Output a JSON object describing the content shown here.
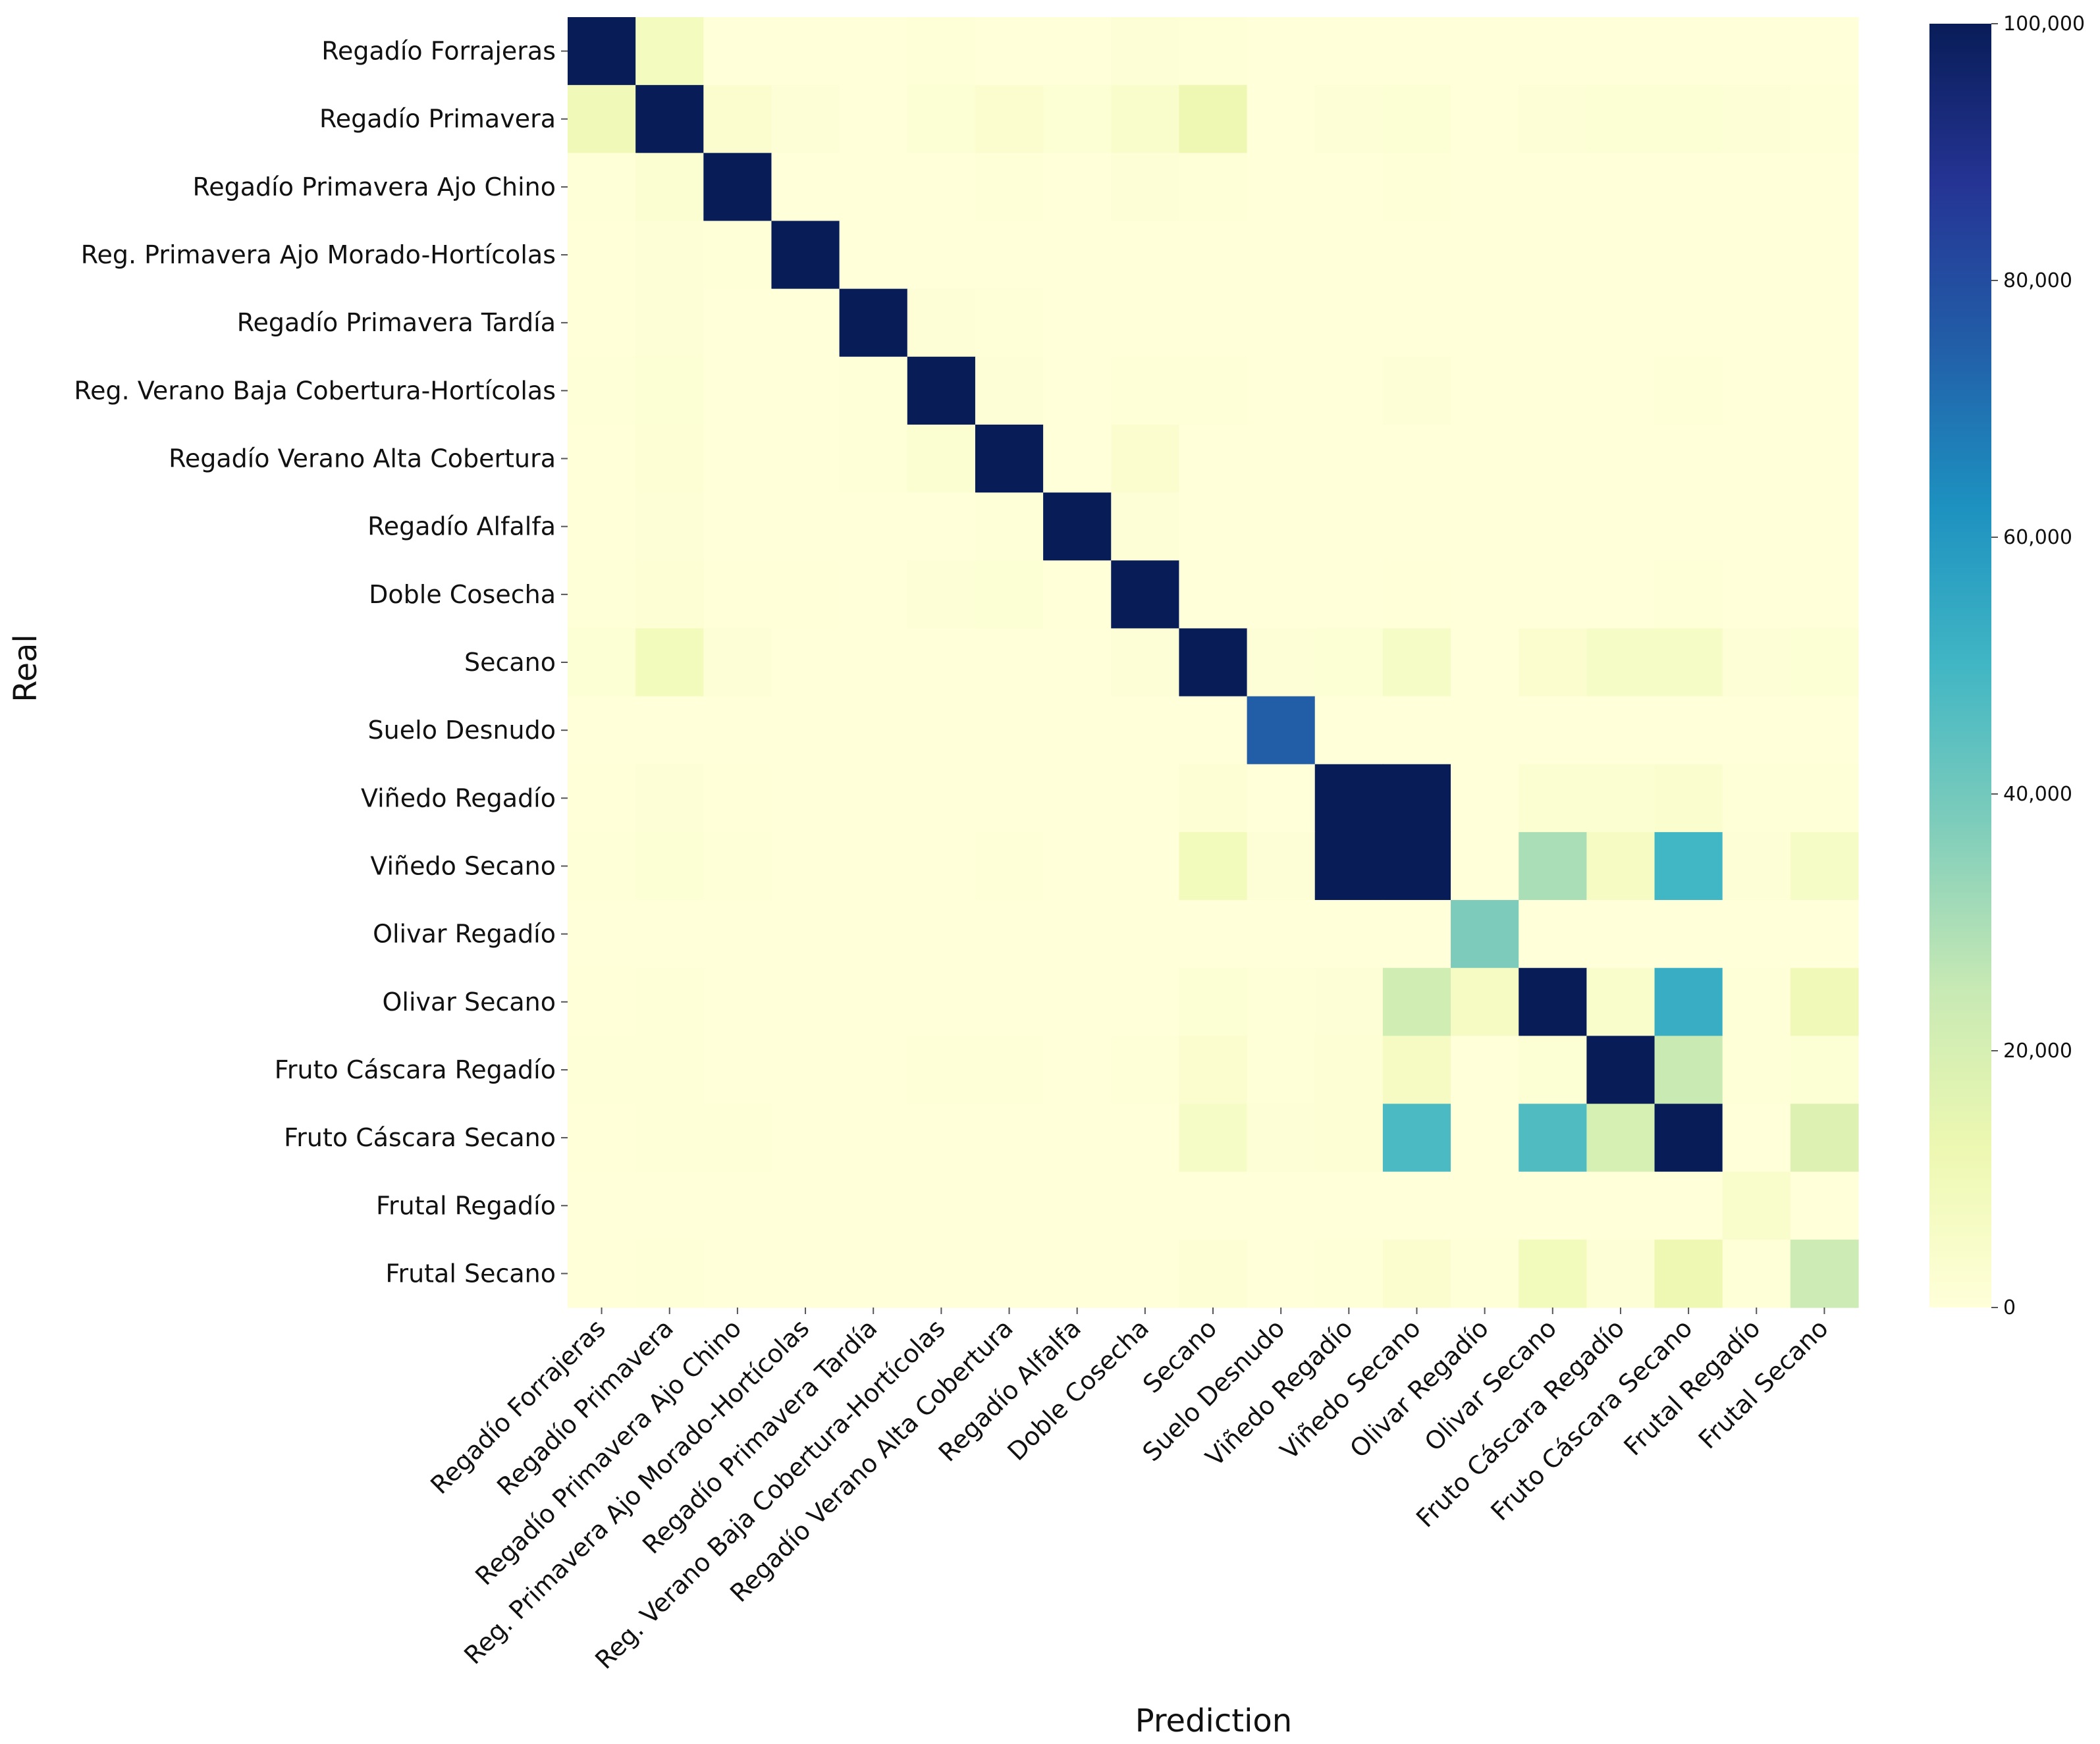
{
  "chart_data": {
    "type": "heatmap",
    "title": "",
    "xlabel": "Prediction",
    "ylabel": "Real",
    "categories": [
      "Regadío Forrajeras",
      "Regadío Primavera",
      "Regadío Primavera Ajo Chino",
      "Reg. Primavera Ajo Morado-Hortícolas",
      "Regadío Primavera Tardía",
      "Reg. Verano Baja Cobertura-Hortícolas",
      "Regadío Verano Alta Cobertura",
      "Regadío Alfalfa",
      "Doble Cosecha",
      "Secano",
      "Suelo Desnudo",
      "Viñedo Regadío",
      "Viñedo Secano",
      "Olivar Regadío",
      "Olivar Secano",
      "Fruto Cáscara Regadío",
      "Fruto Cáscara Secano",
      "Frutal Regadío",
      "Frutal Secano"
    ],
    "y_categories": [
      "Regadío Forrajeras",
      "Regadío Primavera",
      "Regadío Primavera Ajo Chino",
      "Reg. Primavera Ajo Morado-Hortícolas",
      "Regadío Primavera Tardía",
      "Reg. Verano Baja Cobertura-Hortícolas",
      "Regadío Verano Alta Cobertura",
      "Regadío Alfalfa",
      "Doble Cosecha",
      "Secano",
      "Suelo Desnudo",
      "Viñedo Regadío",
      "Viñedo Secano",
      "Olivar Regadío",
      "Olivar Secano",
      "Fruto Cáscara Regadío",
      "Fruto Cáscara Secano",
      "Frutal Regadío",
      "Frutal Secano"
    ],
    "values": [
      [
        100000,
        8000,
        0,
        0,
        0,
        500,
        0,
        0,
        1000,
        500,
        0,
        0,
        0,
        0,
        0,
        0,
        0,
        0,
        0
      ],
      [
        10000,
        100000,
        3000,
        1000,
        0,
        2000,
        3000,
        2000,
        4000,
        12000,
        0,
        1000,
        2000,
        0,
        1000,
        2000,
        2000,
        1000,
        500
      ],
      [
        500,
        2500,
        100000,
        0,
        0,
        0,
        500,
        0,
        1000,
        500,
        0,
        0,
        500,
        0,
        0,
        0,
        0,
        0,
        0
      ],
      [
        300,
        1000,
        500,
        100000,
        0,
        0,
        0,
        0,
        0,
        0,
        0,
        0,
        0,
        0,
        0,
        0,
        0,
        0,
        0
      ],
      [
        300,
        1200,
        0,
        0,
        100000,
        1000,
        500,
        0,
        0,
        0,
        0,
        0,
        0,
        0,
        0,
        0,
        0,
        0,
        0
      ],
      [
        500,
        2000,
        0,
        0,
        500,
        100000,
        1200,
        0,
        500,
        500,
        0,
        0,
        1000,
        0,
        0,
        0,
        500,
        0,
        0
      ],
      [
        300,
        1500,
        0,
        0,
        500,
        2500,
        100000,
        0,
        3000,
        0,
        0,
        0,
        0,
        0,
        0,
        0,
        0,
        0,
        0
      ],
      [
        200,
        1000,
        0,
        0,
        0,
        0,
        500,
        100000,
        1000,
        0,
        0,
        0,
        0,
        0,
        0,
        0,
        0,
        0,
        0
      ],
      [
        500,
        1500,
        300,
        200,
        0,
        1000,
        2000,
        300,
        100000,
        0,
        0,
        0,
        300,
        0,
        0,
        0,
        500,
        0,
        0
      ],
      [
        2000,
        9000,
        1200,
        0,
        0,
        0,
        0,
        0,
        1000,
        100000,
        1000,
        2000,
        6000,
        0,
        3000,
        6000,
        6000,
        1000,
        2000
      ],
      [
        0,
        0,
        0,
        0,
        0,
        0,
        0,
        0,
        0,
        0,
        75000,
        0,
        0,
        0,
        0,
        0,
        0,
        0,
        0
      ],
      [
        300,
        1000,
        300,
        0,
        0,
        0,
        0,
        0,
        0,
        1500,
        0,
        100000,
        100000,
        0,
        2500,
        2500,
        3500,
        500,
        500
      ],
      [
        500,
        2000,
        500,
        0,
        0,
        0,
        700,
        0,
        0,
        9000,
        1000,
        100000,
        100000,
        0,
        30000,
        7000,
        50000,
        1000,
        6000
      ],
      [
        0,
        0,
        0,
        0,
        0,
        0,
        0,
        0,
        0,
        0,
        0,
        0,
        0,
        38000,
        0,
        0,
        0,
        0,
        0
      ],
      [
        300,
        500,
        0,
        0,
        0,
        0,
        0,
        0,
        0,
        2000,
        500,
        1000,
        22000,
        7000,
        100000,
        4000,
        53000,
        500,
        10000
      ],
      [
        500,
        700,
        0,
        0,
        0,
        500,
        500,
        0,
        500,
        3000,
        500,
        1500,
        7000,
        0,
        2000,
        100000,
        24000,
        500,
        2000
      ],
      [
        300,
        700,
        500,
        0,
        0,
        0,
        0,
        0,
        0,
        6000,
        1000,
        1500,
        48000,
        0,
        47000,
        20000,
        100000,
        0,
        18000
      ],
      [
        0,
        0,
        0,
        0,
        0,
        0,
        0,
        0,
        0,
        0,
        0,
        0,
        0,
        0,
        0,
        0,
        0,
        4000,
        0
      ],
      [
        300,
        500,
        0,
        0,
        0,
        0,
        0,
        0,
        0,
        1500,
        0,
        500,
        3000,
        500,
        9000,
        1000,
        12000,
        500,
        23000
      ]
    ],
    "colorbar": {
      "min": 0,
      "max": 100000,
      "ticks": [
        0,
        20000,
        40000,
        60000,
        80000,
        100000
      ],
      "tick_labels": [
        "0",
        "20,000",
        "40,000",
        "60,000",
        "80,000",
        "100,000"
      ],
      "colormap": "YlGnBu",
      "colors": [
        "#ffffd9",
        "#edf8b1",
        "#c7e9b4",
        "#7fcdbb",
        "#41b6c4",
        "#1d91c0",
        "#225ea8",
        "#253494",
        "#081d58"
      ]
    },
    "grid": false,
    "legend": "colorbar-right"
  }
}
